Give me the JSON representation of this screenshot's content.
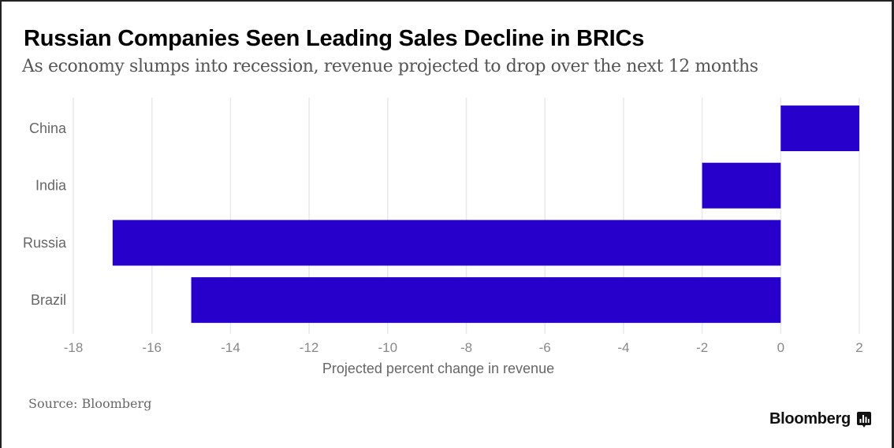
{
  "header": {
    "title": "Russian Companies Seen Leading Sales Decline in BRICs",
    "subtitle": "As economy slumps into recession, revenue projected to drop over the next 12 months"
  },
  "footer": {
    "source": "Source: Bloomberg",
    "brand": "Bloomberg",
    "brand_icon": "bloomberg-chart-icon"
  },
  "colors": {
    "bar": "#2800cc",
    "grid": "#e8e8ee"
  },
  "chart_data": {
    "type": "bar",
    "orientation": "horizontal",
    "title": "Russian Companies Seen Leading Sales Decline in BRICs",
    "subtitle": "As economy slumps into recession, revenue projected to drop over the next 12 months",
    "categories": [
      "China",
      "India",
      "Russia",
      "Brazil"
    ],
    "values": [
      2,
      -2,
      -17,
      -15
    ],
    "xlabel": "Projected percent change in revenue",
    "ylabel": "",
    "xlim": [
      -18,
      2
    ],
    "xticks": [
      -18,
      -16,
      -14,
      -12,
      -10,
      -8,
      -6,
      -4,
      -2,
      0,
      2
    ],
    "xtick_labels": [
      "-18",
      "-16",
      "-14",
      "-12",
      "-10",
      "-8",
      "-6",
      "-4",
      "-2",
      "0",
      "2"
    ],
    "grid": true,
    "legend": "none"
  }
}
